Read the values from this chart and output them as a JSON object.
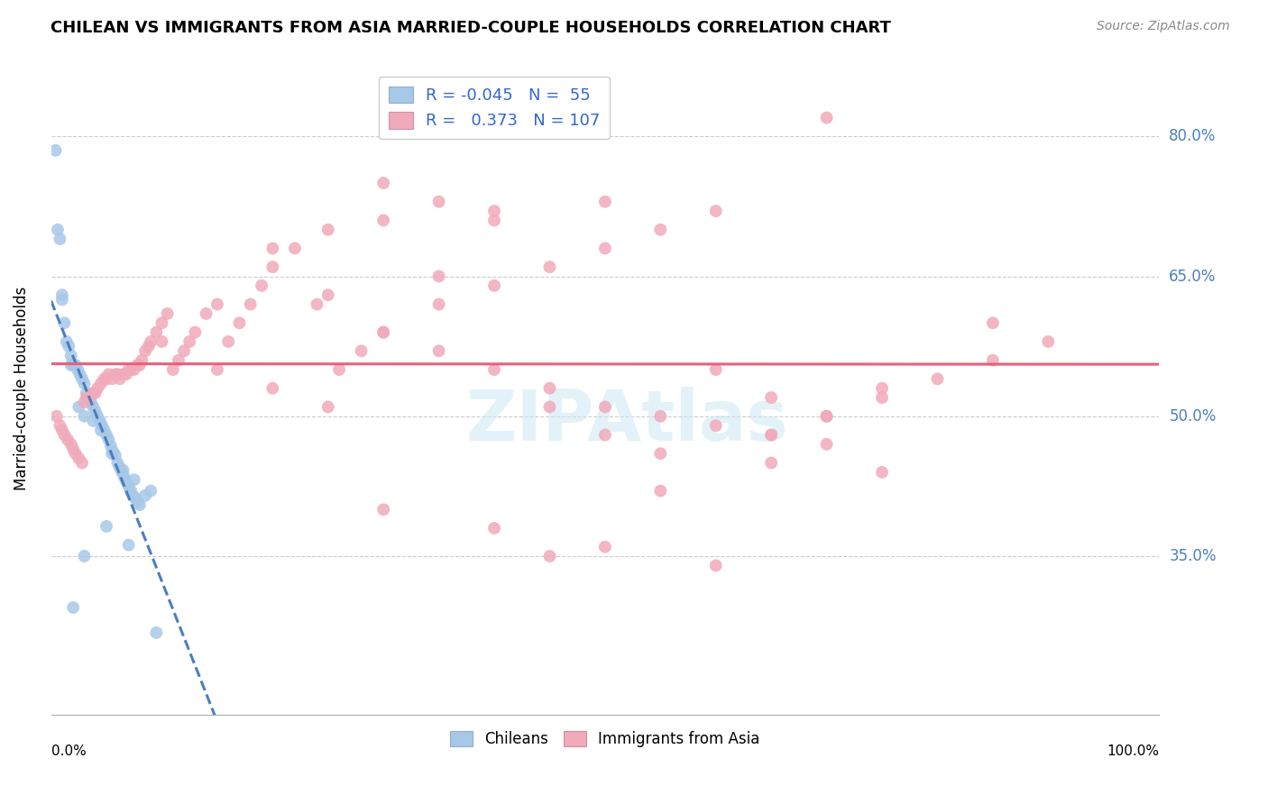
{
  "title": "CHILEAN VS IMMIGRANTS FROM ASIA MARRIED-COUPLE HOUSEHOLDS CORRELATION CHART",
  "source": "Source: ZipAtlas.com",
  "ylabel": "Married-couple Households",
  "xlim": [
    0.0,
    1.0
  ],
  "ylim": [
    0.18,
    0.88
  ],
  "yticks": [
    0.35,
    0.5,
    0.65,
    0.8
  ],
  "ytick_labels": [
    "35.0%",
    "50.0%",
    "65.0%",
    "80.0%"
  ],
  "blue_R": "-0.045",
  "blue_N": "55",
  "pink_R": "0.373",
  "pink_N": "107",
  "blue_color": "#a8c8e8",
  "pink_color": "#f0aabb",
  "blue_line_color": "#4a7fc0",
  "pink_line_color": "#e8607a",
  "legend_label_blue": "Chileans",
  "legend_label_pink": "Immigrants from Asia",
  "blue_scatter_x": [
    0.004,
    0.006,
    0.008,
    0.01,
    0.012,
    0.014,
    0.016,
    0.018,
    0.02,
    0.022,
    0.024,
    0.026,
    0.028,
    0.03,
    0.032,
    0.034,
    0.036,
    0.038,
    0.04,
    0.042,
    0.044,
    0.046,
    0.048,
    0.05,
    0.052,
    0.054,
    0.056,
    0.058,
    0.06,
    0.062,
    0.064,
    0.066,
    0.068,
    0.07,
    0.072,
    0.074,
    0.076,
    0.078,
    0.08,
    0.085,
    0.09,
    0.01,
    0.018,
    0.025,
    0.03,
    0.038,
    0.045,
    0.055,
    0.065,
    0.075,
    0.02,
    0.03,
    0.05,
    0.07,
    0.095
  ],
  "blue_scatter_y": [
    0.785,
    0.7,
    0.69,
    0.63,
    0.6,
    0.58,
    0.575,
    0.565,
    0.555,
    0.555,
    0.55,
    0.545,
    0.54,
    0.535,
    0.525,
    0.52,
    0.515,
    0.51,
    0.505,
    0.5,
    0.495,
    0.49,
    0.485,
    0.48,
    0.475,
    0.468,
    0.462,
    0.458,
    0.45,
    0.445,
    0.44,
    0.435,
    0.43,
    0.425,
    0.42,
    0.415,
    0.412,
    0.408,
    0.405,
    0.415,
    0.42,
    0.625,
    0.555,
    0.51,
    0.5,
    0.495,
    0.485,
    0.46,
    0.442,
    0.432,
    0.295,
    0.35,
    0.382,
    0.362,
    0.268
  ],
  "pink_scatter_x": [
    0.005,
    0.008,
    0.01,
    0.012,
    0.015,
    0.018,
    0.02,
    0.022,
    0.025,
    0.028,
    0.03,
    0.032,
    0.035,
    0.038,
    0.04,
    0.042,
    0.045,
    0.048,
    0.05,
    0.052,
    0.055,
    0.058,
    0.06,
    0.062,
    0.065,
    0.068,
    0.07,
    0.072,
    0.075,
    0.078,
    0.08,
    0.082,
    0.085,
    0.088,
    0.09,
    0.095,
    0.1,
    0.105,
    0.11,
    0.115,
    0.12,
    0.125,
    0.13,
    0.14,
    0.15,
    0.16,
    0.17,
    0.18,
    0.19,
    0.2,
    0.22,
    0.24,
    0.26,
    0.28,
    0.3,
    0.35,
    0.4,
    0.45,
    0.5,
    0.55,
    0.6,
    0.65,
    0.7,
    0.75,
    0.8,
    0.85,
    0.9,
    0.25,
    0.3,
    0.35,
    0.4,
    0.45,
    0.5,
    0.55,
    0.6,
    0.65,
    0.7,
    0.1,
    0.15,
    0.2,
    0.25,
    0.3,
    0.35,
    0.4,
    0.45,
    0.5,
    0.55,
    0.6,
    0.65,
    0.7,
    0.75,
    0.3,
    0.4,
    0.5,
    0.6,
    0.7,
    0.25,
    0.35,
    0.45,
    0.55,
    0.65,
    0.75,
    0.85,
    0.2,
    0.3,
    0.4,
    0.5
  ],
  "pink_scatter_y": [
    0.5,
    0.49,
    0.485,
    0.48,
    0.475,
    0.47,
    0.465,
    0.46,
    0.455,
    0.45,
    0.515,
    0.52,
    0.52,
    0.525,
    0.525,
    0.53,
    0.535,
    0.54,
    0.54,
    0.545,
    0.54,
    0.545,
    0.545,
    0.54,
    0.545,
    0.545,
    0.55,
    0.55,
    0.55,
    0.555,
    0.555,
    0.56,
    0.57,
    0.575,
    0.58,
    0.59,
    0.6,
    0.61,
    0.55,
    0.56,
    0.57,
    0.58,
    0.59,
    0.61,
    0.62,
    0.58,
    0.6,
    0.62,
    0.64,
    0.66,
    0.68,
    0.62,
    0.55,
    0.57,
    0.59,
    0.62,
    0.64,
    0.66,
    0.68,
    0.7,
    0.72,
    0.48,
    0.5,
    0.52,
    0.54,
    0.56,
    0.58,
    0.63,
    0.59,
    0.57,
    0.55,
    0.51,
    0.48,
    0.46,
    0.55,
    0.52,
    0.5,
    0.58,
    0.55,
    0.53,
    0.51,
    0.75,
    0.73,
    0.71,
    0.53,
    0.51,
    0.5,
    0.49,
    0.48,
    0.47,
    0.44,
    0.4,
    0.38,
    0.36,
    0.34,
    0.82,
    0.7,
    0.65,
    0.35,
    0.42,
    0.45,
    0.53,
    0.6,
    0.68,
    0.71,
    0.72,
    0.73
  ]
}
